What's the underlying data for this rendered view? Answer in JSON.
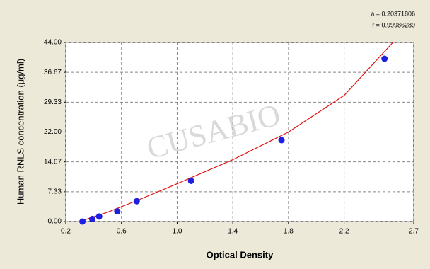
{
  "chart_data": {
    "type": "scatter",
    "ylabel": "Human RNLS concentration (μg/ml)",
    "xlabel": "Optical Density",
    "annotations": [
      "a = 0.20371806",
      "r = 0.99986289"
    ],
    "watermark": "CUSABIO",
    "xlim": [
      0.2,
      2.7
    ],
    "xticks": [
      0.2,
      0.6,
      {
        "value": 1.0,
        "label": "1.0"
      },
      1.4,
      1.8,
      2.2,
      2.7
    ],
    "ylim": [
      0,
      44
    ],
    "yticks": [
      {
        "value": 0,
        "label": "0.00"
      },
      7.33,
      14.67,
      {
        "value": 22,
        "label": "22.00"
      },
      29.33,
      36.67,
      {
        "value": 44,
        "label": "44.00"
      }
    ],
    "grid": true,
    "series": [
      {
        "color": "#1f1fe0",
        "x": [
          0.32,
          0.39,
          0.44,
          0.57,
          0.71,
          1.1,
          1.75,
          2.49
        ],
        "values": [
          0,
          0.625,
          1.25,
          2.5,
          5,
          10,
          20,
          40
        ]
      },
      {
        "color": "#e01010",
        "x": [
          0.3,
          0.5,
          0.7,
          1.0,
          1.4,
          1.8,
          2.2,
          2.55
        ],
        "values": [
          0,
          2.3,
          5.0,
          9.3,
          15.2,
          22.0,
          31.0,
          44
        ]
      }
    ]
  }
}
